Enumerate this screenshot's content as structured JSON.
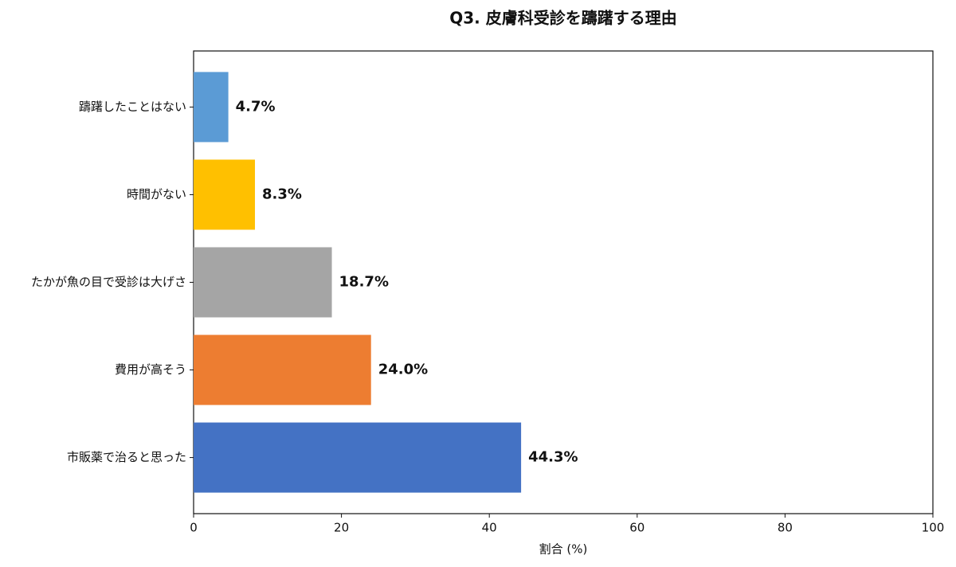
{
  "chart_data": {
    "type": "barh",
    "title": "Q3. 皮膚科受診を躊躇する理由",
    "categories": [
      "躊躇したことはない",
      "時間がない",
      "たかが魚の目で受診は大げさ",
      "費用が高そう",
      "市販薬で治ると思った"
    ],
    "values": [
      4.7,
      8.3,
      18.7,
      24.0,
      44.3
    ],
    "value_labels": [
      "4.7%",
      "8.3%",
      "18.7%",
      "24.0%",
      "44.3%"
    ],
    "colors": [
      "#5b9bd5",
      "#ffc000",
      "#a5a5a5",
      "#ed7d31",
      "#4472c4"
    ],
    "xlabel": "割合 (%)",
    "xlim": [
      0,
      100
    ],
    "xticks": [
      0,
      20,
      40,
      60,
      80,
      100
    ],
    "grid": false
  }
}
